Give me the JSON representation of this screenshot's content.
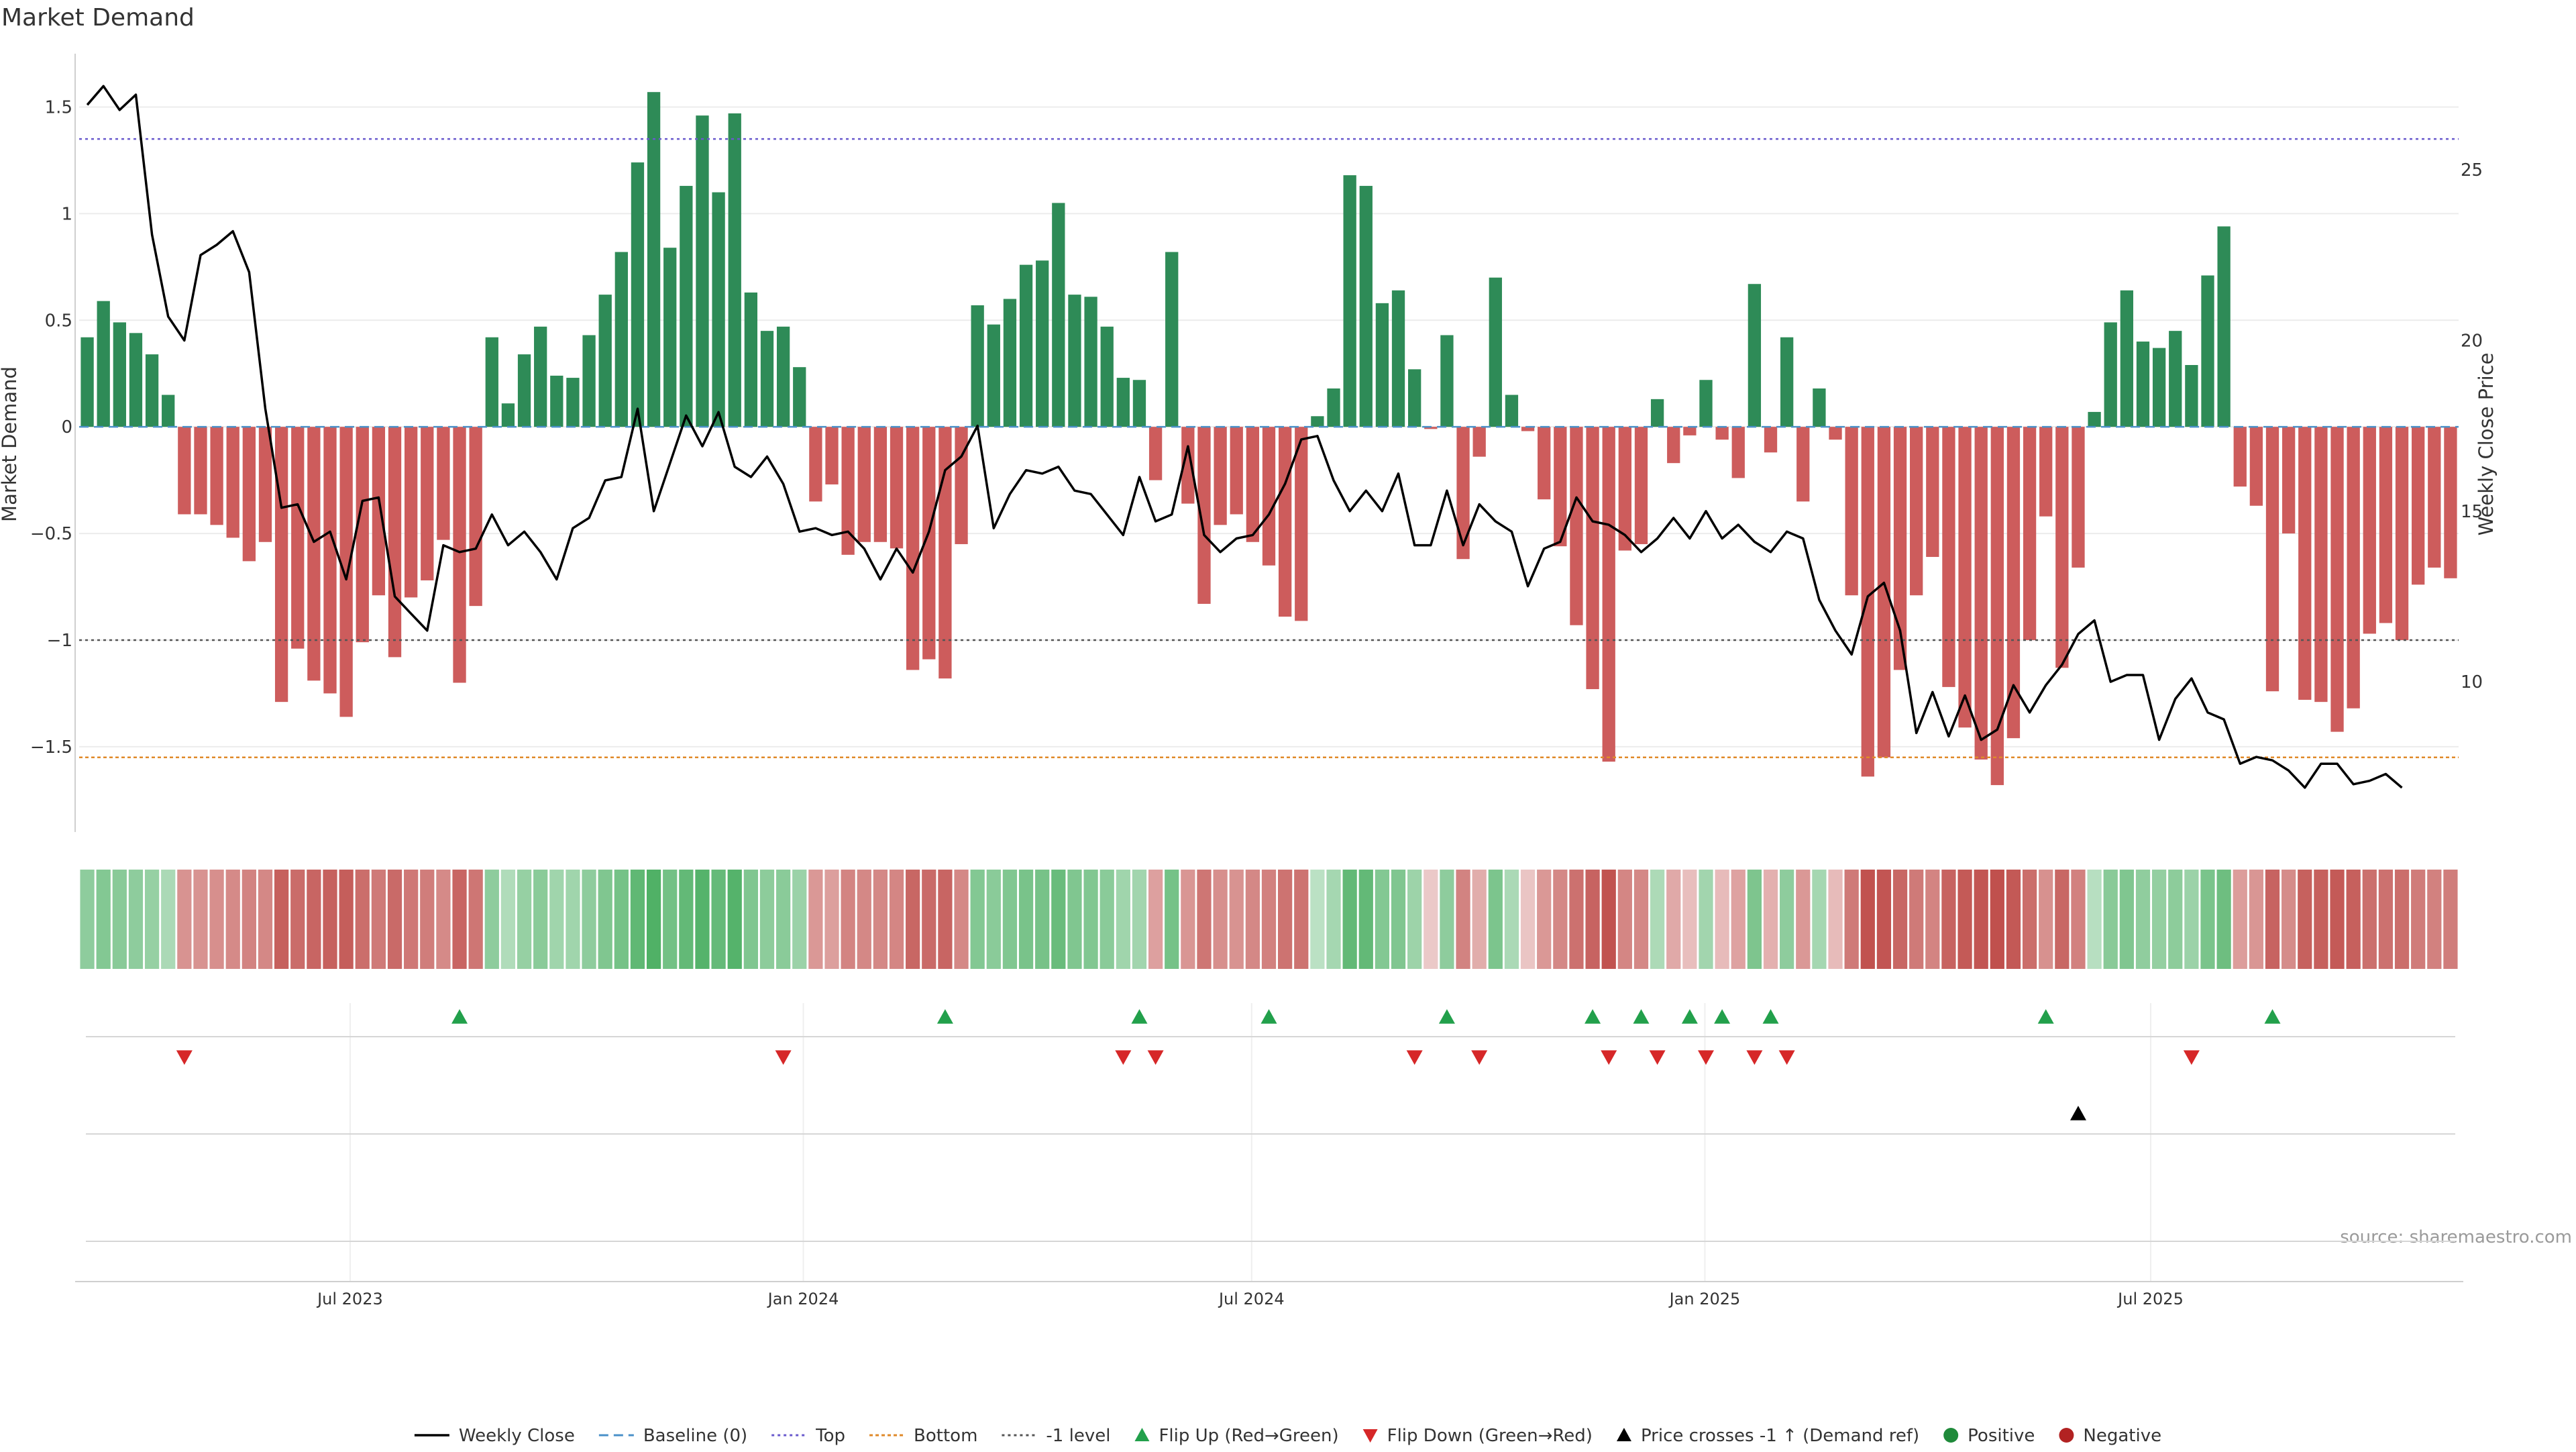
{
  "chart_data": {
    "type": "bar",
    "title": "Market Demand",
    "ylabel": "Market Demand",
    "y2label": "Weekly Close Price",
    "ylim": [
      -1.9,
      1.75
    ],
    "y2lim": [
      5.6,
      28.4
    ],
    "yticks": [
      1.5,
      1,
      0.5,
      0,
      -0.5,
      -1,
      -1.5
    ],
    "ytick_labels": [
      "1.5",
      "1",
      "0.5",
      "0",
      "−0.5",
      "−1",
      "−1.5"
    ],
    "y2ticks": [
      25,
      20,
      15,
      10
    ],
    "y2tick_labels": [
      "25",
      "20",
      "15",
      "10"
    ],
    "x_start": "2023-03-13",
    "x_end": "2025-11-03",
    "xtick_dates": [
      "2023-07-01",
      "2024-01-01",
      "2024-07-01",
      "2025-01-01",
      "2025-07-01"
    ],
    "xtick_labels": [
      "Jul 2023",
      "Jan 2024",
      "Jul 2024",
      "Jan 2025",
      "Jul 2025"
    ],
    "reference_lines": {
      "top": 1.35,
      "bottom": -1.55,
      "minus_one": -1.0,
      "baseline": 0
    },
    "colors": {
      "positive": "#2e8b57",
      "negative": "#cd5c5c",
      "close_line": "#000000",
      "top_line": "#6a5acd",
      "bottom_line": "#e08a2a",
      "minus_one_line": "#555555",
      "baseline_line": "#4a90c8",
      "flip_up": "#22a04b",
      "flip_down": "#d62728",
      "price_cross": "#000000"
    },
    "demand": [
      0.42,
      0.59,
      0.49,
      0.44,
      0.34,
      0.15,
      -0.41,
      -0.41,
      -0.46,
      -0.52,
      -0.63,
      -0.54,
      -1.29,
      -1.04,
      -1.19,
      -1.25,
      -1.36,
      -1.01,
      -0.79,
      -1.08,
      -0.8,
      -0.72,
      -0.53,
      -1.2,
      -0.84,
      0.42,
      0.11,
      0.34,
      0.47,
      0.24,
      0.23,
      0.43,
      0.62,
      0.82,
      1.24,
      1.57,
      0.84,
      1.13,
      1.46,
      1.1,
      1.47,
      0.63,
      0.45,
      0.47,
      0.28,
      -0.35,
      -0.27,
      -0.6,
      -0.54,
      -0.54,
      -0.57,
      -1.14,
      -1.09,
      -1.18,
      -0.55,
      0.57,
      0.48,
      0.6,
      0.76,
      0.78,
      1.05,
      0.62,
      0.61,
      0.47,
      0.23,
      0.22,
      -0.25,
      0.82,
      -0.36,
      -0.83,
      -0.46,
      -0.41,
      -0.54,
      -0.65,
      -0.89,
      -0.91,
      0.05,
      0.18,
      1.18,
      1.13,
      0.58,
      0.64,
      0.27,
      -0.01,
      0.43,
      -0.62,
      -0.14,
      0.7,
      0.15,
      -0.02,
      -0.34,
      -0.56,
      -0.93,
      -1.23,
      -1.57,
      -0.58,
      -0.55,
      0.13,
      -0.17,
      -0.04,
      0.22,
      -0.06,
      -0.24,
      0.67,
      -0.12,
      0.42,
      -0.35,
      0.18,
      -0.06,
      -0.79,
      -1.64,
      -1.55,
      -1.14,
      -0.79,
      -0.61,
      -1.22,
      -1.41,
      -1.56,
      -1.68,
      -1.46,
      -1.0,
      -0.42,
      -1.13,
      -0.66,
      0.07,
      0.49,
      0.64,
      0.4,
      0.37,
      0.45,
      0.29,
      0.71,
      0.94,
      -0.28,
      -0.37,
      -1.24,
      -0.5,
      -1.28,
      -1.29,
      -1.43,
      -1.32,
      -0.97,
      -0.92,
      -1.0,
      -0.74,
      -0.66,
      -0.71
    ],
    "weekly_close": [
      26.9,
      27.45,
      26.75,
      27.2,
      23.1,
      20.7,
      20.0,
      22.5,
      22.8,
      23.2,
      22.0,
      18.0,
      15.1,
      15.2,
      14.1,
      14.4,
      13.0,
      15.3,
      15.4,
      12.5,
      12.0,
      11.5,
      14.0,
      13.8,
      13.9,
      14.9,
      14.0,
      14.4,
      13.8,
      13.0,
      14.5,
      14.8,
      15.9,
      16.0,
      18.0,
      15.0,
      16.4,
      17.8,
      16.9,
      17.9,
      16.3,
      16.0,
      16.6,
      15.8,
      14.4,
      14.5,
      14.3,
      14.4,
      13.9,
      13.0,
      13.9,
      13.2,
      14.4,
      16.2,
      16.6,
      17.5,
      14.5,
      15.5,
      16.2,
      16.1,
      16.3,
      15.6,
      15.5,
      14.9,
      14.3,
      16.0,
      14.7,
      14.9,
      16.9,
      14.3,
      13.8,
      14.2,
      14.3,
      14.9,
      15.8,
      17.1,
      17.2,
      15.9,
      15.0,
      15.6,
      15.0,
      16.1,
      14.0,
      14.0,
      15.6,
      14.0,
      15.2,
      14.7,
      14.4,
      12.8,
      13.9,
      14.1,
      15.4,
      14.7,
      14.6,
      14.3,
      13.8,
      14.2,
      14.8,
      14.2,
      15.0,
      14.2,
      14.6,
      14.1,
      13.8,
      14.4,
      14.2,
      12.4,
      11.5,
      10.8,
      12.5,
      12.9,
      11.5,
      8.5,
      9.7,
      8.4,
      9.6,
      8.3,
      8.6,
      9.9,
      9.1,
      9.9,
      10.5,
      11.4,
      11.8,
      10.0,
      10.2,
      10.2,
      8.3,
      9.5,
      10.1,
      9.1,
      8.9,
      7.6,
      7.8,
      7.7,
      7.4,
      6.9,
      7.6,
      7.6,
      7.0,
      7.1,
      7.3,
      6.9
    ],
    "flip_up_weeks": [
      23,
      53,
      65,
      73,
      84,
      93,
      96,
      99,
      101,
      104,
      121,
      135
    ],
    "flip_down_weeks": [
      6,
      43,
      64,
      66,
      82,
      86,
      94,
      97,
      100,
      103,
      105,
      130
    ],
    "price_cross_weeks": [
      123
    ],
    "legend": [
      {
        "key": "weekly_close",
        "label": "Weekly Close"
      },
      {
        "key": "baseline",
        "label": "Baseline (0)"
      },
      {
        "key": "top",
        "label": "Top"
      },
      {
        "key": "bottom",
        "label": "Bottom"
      },
      {
        "key": "minus_one",
        "label": "-1 level"
      },
      {
        "key": "flip_up",
        "label": "Flip Up (Red→Green)"
      },
      {
        "key": "flip_down",
        "label": "Flip Down (Green→Red)"
      },
      {
        "key": "price_cross",
        "label": "Price crosses -1 ↑ (Demand ref)"
      },
      {
        "key": "positive",
        "label": "Positive"
      },
      {
        "key": "negative",
        "label": "Negative"
      }
    ],
    "source": "source: sharemaestro.com"
  }
}
